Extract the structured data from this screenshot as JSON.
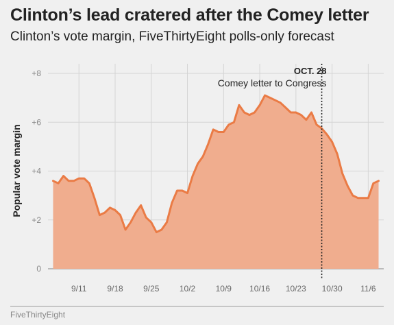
{
  "header": {
    "title": "Clinton’s lead cratered after the Comey letter",
    "subtitle": "Clinton’s vote margin, FiveThirtyEight polls-only forecast"
  },
  "footer": {
    "source": "FiveThirtyEight"
  },
  "chart_data": {
    "type": "area",
    "ylabel": "Popular vote margin",
    "xlabel": "",
    "ylim": [
      0,
      8
    ],
    "y_ticks": [
      0,
      2,
      4,
      6,
      8
    ],
    "y_tick_labels": [
      "0",
      "+2",
      "+4",
      "+6",
      "+8"
    ],
    "x_ticks": [
      "2016-09-11",
      "2016-09-18",
      "2016-09-25",
      "2016-10-02",
      "2016-10-09",
      "2016-10-16",
      "2016-10-23",
      "2016-10-30",
      "2016-11-06"
    ],
    "x_tick_labels": [
      "9/11",
      "9/18",
      "9/25",
      "10/2",
      "10/9",
      "10/16",
      "10/23",
      "10/30",
      "11/6"
    ],
    "xlim": [
      "2016-09-05",
      "2016-11-09"
    ],
    "grid": true,
    "colors": {
      "fill": "#f0ad8e",
      "line": "#ea7b45",
      "grid": "#d4d4d4",
      "axis": "#999999"
    },
    "annotation": {
      "x": "2016-10-28",
      "label_bold": "OCT. 28",
      "label": "Comey letter to Congress"
    },
    "series": [
      {
        "x": [
          "2016-09-06",
          "2016-09-07",
          "2016-09-08",
          "2016-09-09",
          "2016-09-10",
          "2016-09-11",
          "2016-09-12",
          "2016-09-13",
          "2016-09-14",
          "2016-09-15",
          "2016-09-16",
          "2016-09-17",
          "2016-09-18",
          "2016-09-19",
          "2016-09-20",
          "2016-09-21",
          "2016-09-22",
          "2016-09-23",
          "2016-09-24",
          "2016-09-25",
          "2016-09-26",
          "2016-09-27",
          "2016-09-28",
          "2016-09-29",
          "2016-09-30",
          "2016-10-01",
          "2016-10-02",
          "2016-10-03",
          "2016-10-04",
          "2016-10-05",
          "2016-10-06",
          "2016-10-07",
          "2016-10-08",
          "2016-10-09",
          "2016-10-10",
          "2016-10-11",
          "2016-10-12",
          "2016-10-13",
          "2016-10-14",
          "2016-10-15",
          "2016-10-16",
          "2016-10-17",
          "2016-10-18",
          "2016-10-19",
          "2016-10-20",
          "2016-10-21",
          "2016-10-22",
          "2016-10-23",
          "2016-10-24",
          "2016-10-25",
          "2016-10-26",
          "2016-10-27",
          "2016-10-28",
          "2016-10-29",
          "2016-10-30",
          "2016-10-31",
          "2016-11-01",
          "2016-11-02",
          "2016-11-03",
          "2016-11-04",
          "2016-11-05",
          "2016-11-06",
          "2016-11-07",
          "2016-11-08"
        ],
        "values": [
          3.6,
          3.5,
          3.8,
          3.6,
          3.6,
          3.7,
          3.7,
          3.5,
          2.9,
          2.2,
          2.3,
          2.5,
          2.4,
          2.2,
          1.6,
          1.9,
          2.3,
          2.6,
          2.1,
          1.9,
          1.5,
          1.6,
          1.9,
          2.7,
          3.2,
          3.2,
          3.1,
          3.8,
          4.3,
          4.6,
          5.1,
          5.7,
          5.6,
          5.6,
          5.9,
          6.0,
          6.7,
          6.4,
          6.3,
          6.4,
          6.7,
          7.1,
          7.0,
          6.9,
          6.8,
          6.6,
          6.4,
          6.4,
          6.3,
          6.1,
          6.4,
          5.9,
          5.75,
          5.5,
          5.2,
          4.7,
          3.9,
          3.4,
          3.0,
          2.9,
          2.9,
          2.9,
          3.5,
          3.6
        ]
      }
    ]
  }
}
